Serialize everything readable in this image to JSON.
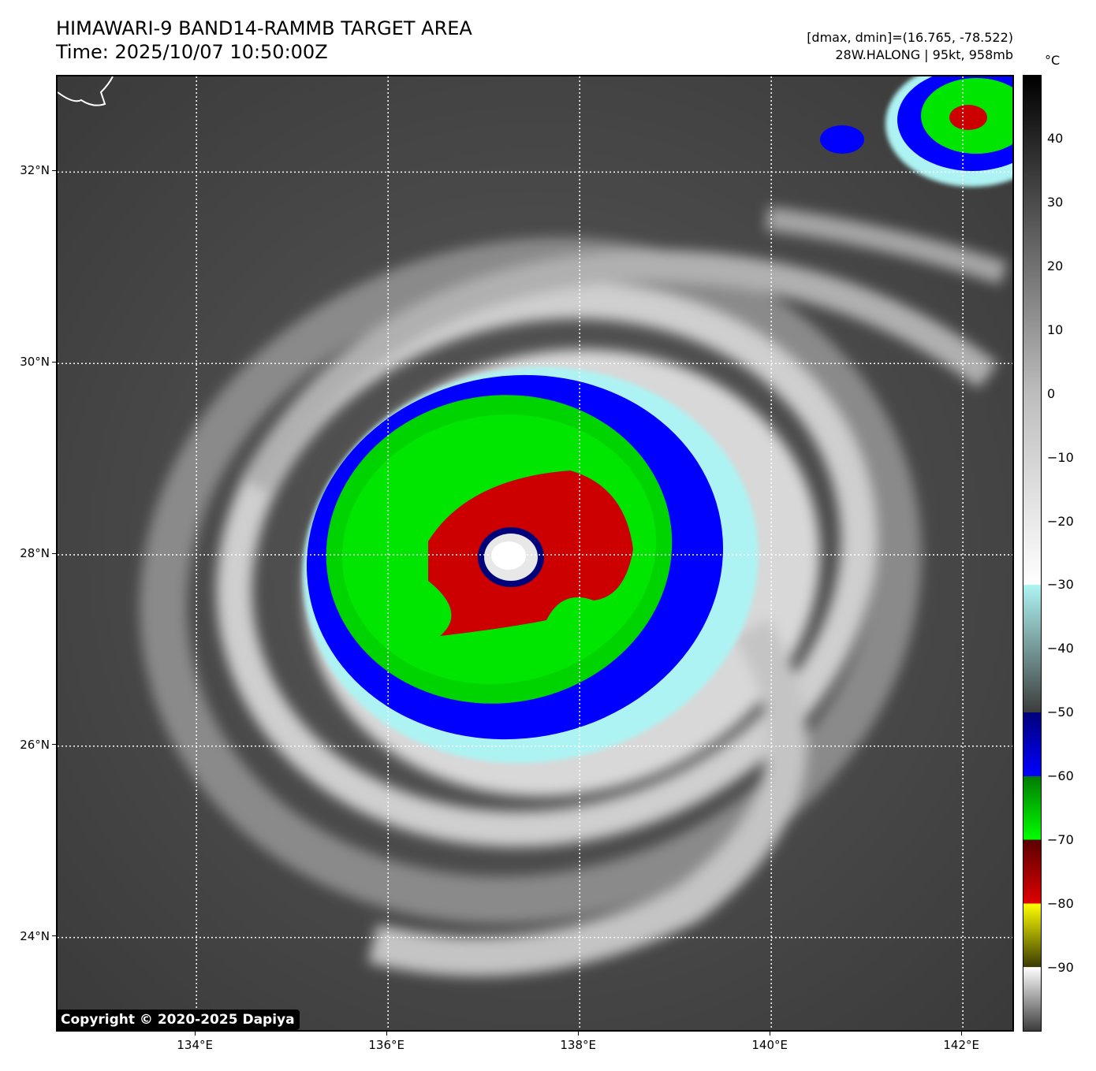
{
  "header": {
    "title": "HIMAWARI-9 BAND14-RAMMB TARGET AREA",
    "time": "Time: 2025/10/07 10:50:00Z",
    "dmax_dmin": "[dmax, dmin]=(16.765, -78.522)",
    "storm": "28W.HALONG | 95kt, 958mb"
  },
  "map": {
    "lat_labels": [
      "32°N",
      "30°N",
      "28°N",
      "26°N",
      "24°N"
    ],
    "lon_labels": [
      "134°E",
      "136°E",
      "138°E",
      "140°E",
      "142°E"
    ],
    "lat_values": [
      32,
      30,
      28,
      26,
      24
    ],
    "lon_values": [
      134,
      136,
      138,
      140,
      142
    ],
    "lon_range": [
      132.55,
      142.55
    ],
    "lat_range": [
      23.0,
      33.0
    ],
    "gridlines": true,
    "storm_center": {
      "lon": 137.3,
      "lat": 28.1
    }
  },
  "colorbar": {
    "unit": "°C",
    "tick_labels": [
      "40",
      "30",
      "20",
      "10",
      "0",
      "−10",
      "−20",
      "−30",
      "−40",
      "−50",
      "−60",
      "−70",
      "−80",
      "−90"
    ],
    "tick_values": [
      40,
      30,
      20,
      10,
      0,
      -10,
      -20,
      -30,
      -40,
      -50,
      -60,
      -70,
      -80,
      -90
    ],
    "range": [
      -100,
      50
    ],
    "colors": {
      "warm": "#000000",
      "neutral": "#bdbdbd",
      "cold_white": "#ffffff",
      "cyan": "#aef3f3",
      "gray_dark": "#3c3c3c",
      "navy": "#00007a",
      "blue": "#0000ff",
      "green_dark": "#007a00",
      "green": "#00ff00",
      "red_dark": "#5a0000",
      "red": "#e00000",
      "yellow": "#ffff00",
      "olive": "#3a3a00"
    }
  },
  "copyright": "Copyright © 2020-2025 Dapiya"
}
